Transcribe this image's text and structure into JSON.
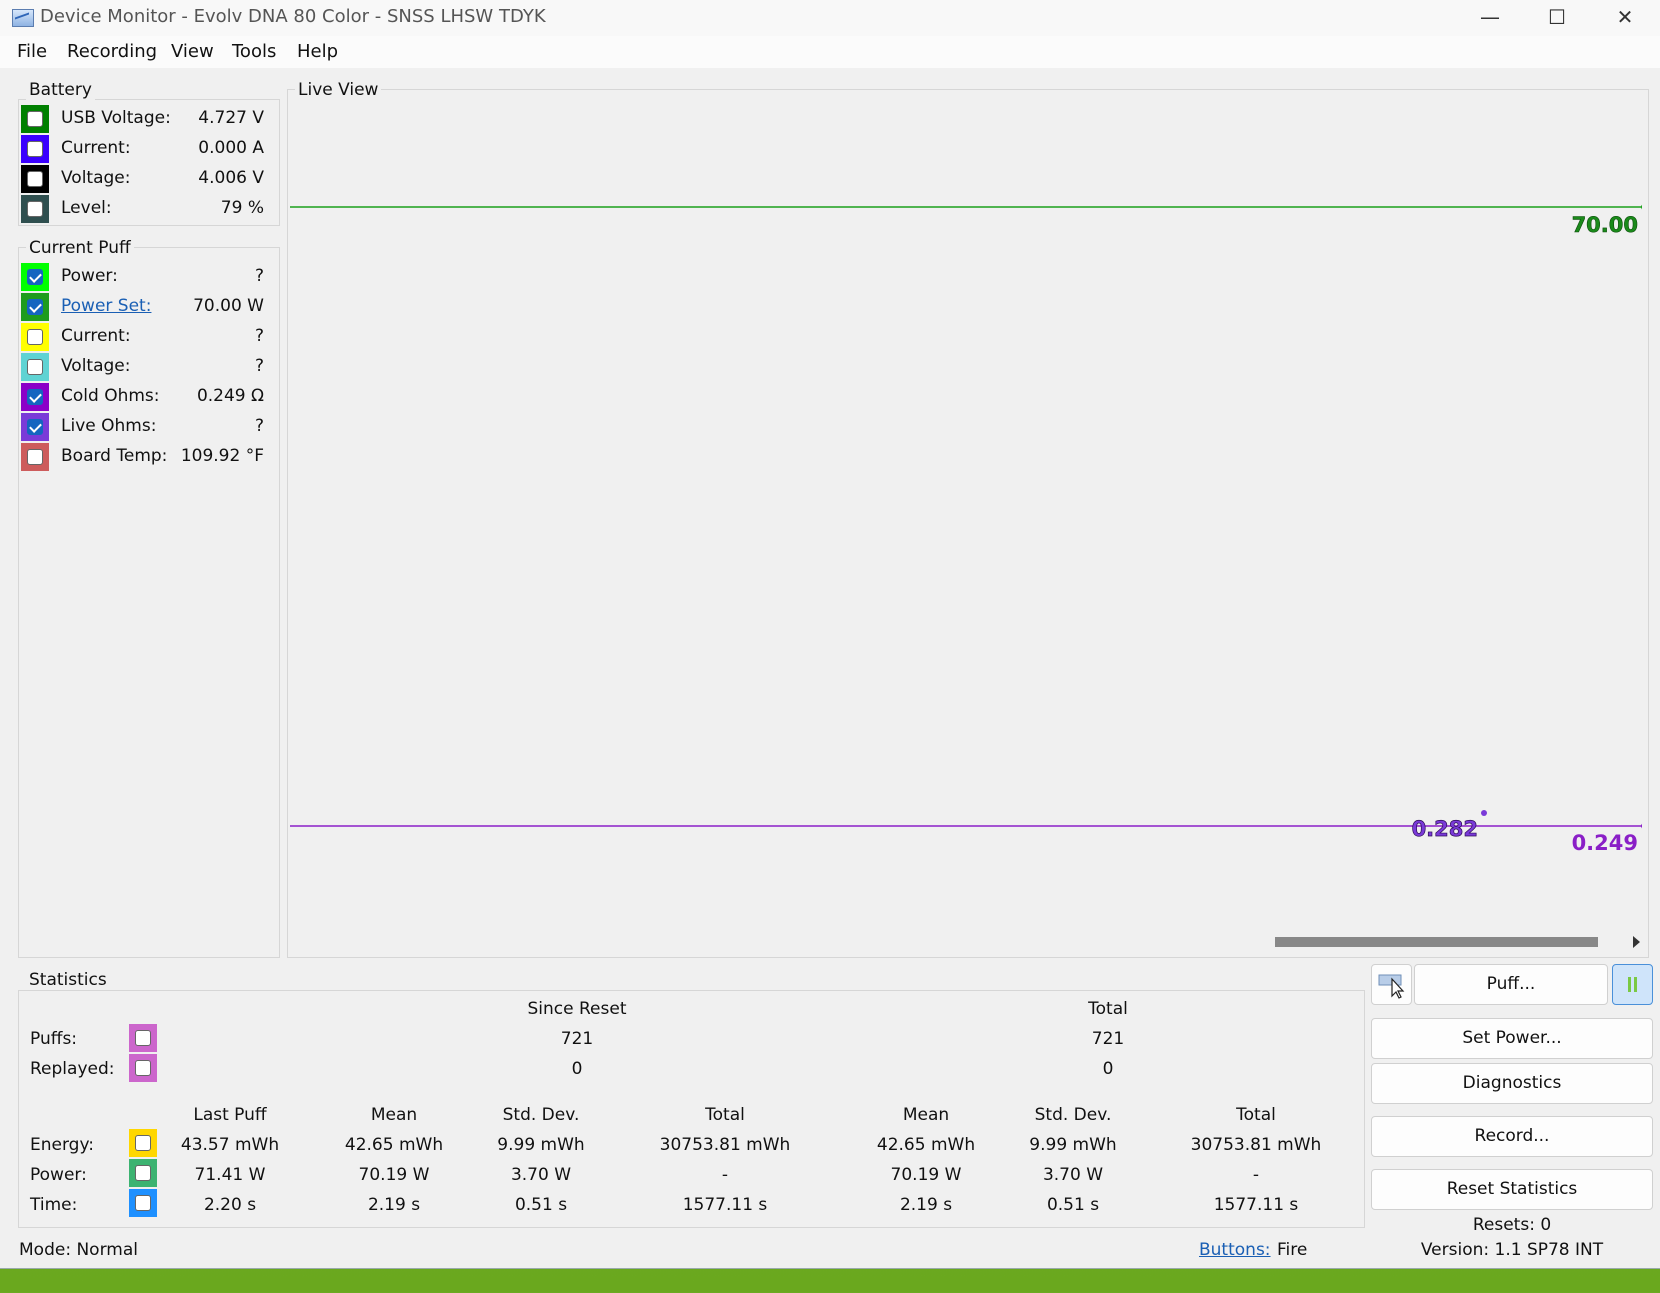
{
  "window": {
    "title": "Device Monitor - Evolv DNA 80 Color - SNSS LHSW TDYK"
  },
  "menu": [
    "File",
    "Recording",
    "View",
    "Tools",
    "Help"
  ],
  "battery": {
    "label": "Battery",
    "rows": [
      {
        "label": "USB Voltage:",
        "value": "4.727 V",
        "color": "#008000",
        "checked": false
      },
      {
        "label": "Current:",
        "value": "0.000 A",
        "color": "#3a00ff",
        "checked": false
      },
      {
        "label": "Voltage:",
        "value": "4.006 V",
        "color": "#000000",
        "checked": false
      },
      {
        "label": "Level:",
        "value": "79 %",
        "color": "#2f4f4f",
        "checked": false
      }
    ]
  },
  "current_puff": {
    "label": "Current Puff",
    "rows": [
      {
        "label": "Power:",
        "value": "?",
        "color": "#00ff00",
        "checked": true
      },
      {
        "label": "Power Set:",
        "value": "70.00 W",
        "color": "#1e9c1e",
        "checked": true,
        "link": true
      },
      {
        "label": "Current:",
        "value": "?",
        "color": "#ffff00",
        "checked": false
      },
      {
        "label": "Voltage:",
        "value": "?",
        "color": "#5fd3d3",
        "checked": false
      },
      {
        "label": "Cold Ohms:",
        "value": "0.249 Ω",
        "color": "#8b00c8",
        "checked": true
      },
      {
        "label": "Live Ohms:",
        "value": "?",
        "color": "#7a3ad8",
        "checked": true
      },
      {
        "label": "Board Temp:",
        "value": "109.92 °F",
        "color": "#cd5c5c",
        "checked": false
      }
    ]
  },
  "live_view": {
    "label": "Live View",
    "power_label": "70.00",
    "ohms_point_label": "0.282",
    "ohms_label": "0.249",
    "power_color": "#1aa01a",
    "ohms_color": "#8a1fc7"
  },
  "statistics": {
    "label": "Statistics",
    "since_reset": "Since Reset",
    "total": "Total",
    "puffs": {
      "label": "Puffs:",
      "since": "721",
      "total": "721",
      "color": "#cc66cc"
    },
    "replayed": {
      "label": "Replayed:",
      "since": "0",
      "total": "0",
      "color": "#cc66cc"
    },
    "columns": [
      "Last Puff",
      "Mean",
      "Std. Dev.",
      "Total",
      "Mean",
      "Std. Dev.",
      "Total"
    ],
    "rows": [
      {
        "label": "Energy:",
        "color": "#ffd700",
        "values": [
          "43.57 mWh",
          "42.65 mWh",
          "9.99 mWh",
          "30753.81 mWh",
          "42.65 mWh",
          "9.99 mWh",
          "30753.81 mWh"
        ]
      },
      {
        "label": "Power:",
        "color": "#3cb371",
        "values": [
          "71.41 W",
          "70.19 W",
          "3.70 W",
          "-",
          "70.19 W",
          "3.70 W",
          "-"
        ]
      },
      {
        "label": "Time:",
        "color": "#1e90ff",
        "values": [
          "2.20 s",
          "2.19 s",
          "0.51 s",
          "1577.11 s",
          "2.19 s",
          "0.51 s",
          "1577.11 s"
        ]
      }
    ]
  },
  "buttons": {
    "puff": "Puff...",
    "set_power": "Set Power...",
    "diagnostics": "Diagnostics",
    "record": "Record...",
    "reset_statistics": "Reset Statistics"
  },
  "status": {
    "mode": "Mode: Normal",
    "buttons_label": "Buttons:",
    "buttons_value": "Fire",
    "resets": "Resets: 0",
    "version": "Version: 1.1 SP78 INT"
  }
}
